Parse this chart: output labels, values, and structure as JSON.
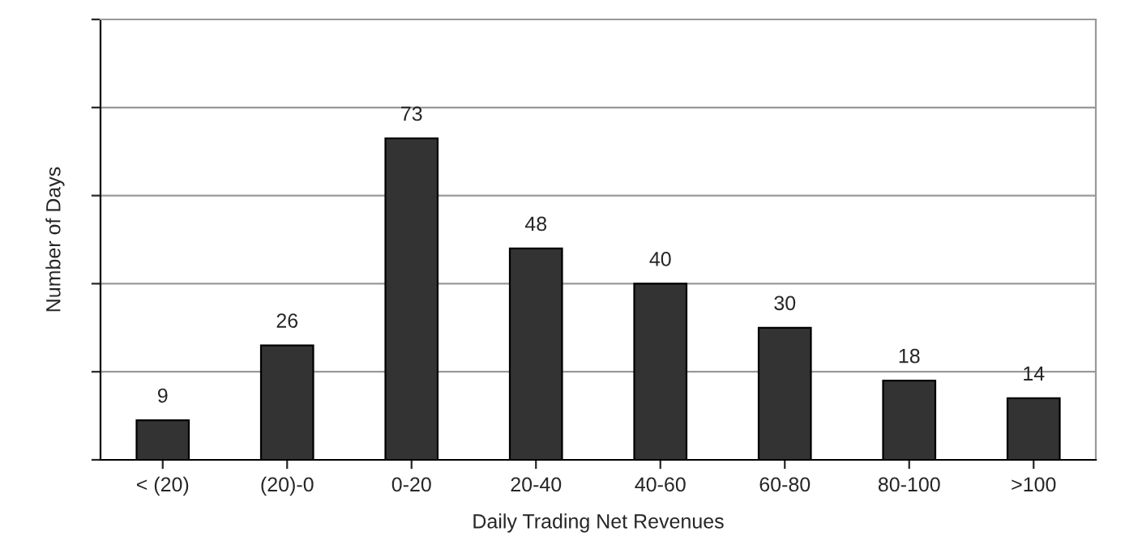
{
  "chart_data": {
    "type": "bar",
    "xlabel": "Daily Trading Net Revenues",
    "ylabel": "Number of Days",
    "categories": [
      "< (20)",
      "(20)-0",
      "0-20",
      "20-40",
      "40-60",
      "60-80",
      "80-100",
      ">100"
    ],
    "values": [
      9,
      26,
      73,
      48,
      40,
      30,
      18,
      14
    ],
    "color": "#333333",
    "ylim": [
      0,
      100
    ],
    "yticks": [
      {
        "value": 0,
        "label": null
      },
      {
        "value": 20,
        "label": null
      },
      {
        "value": 40,
        "label": null
      },
      {
        "value": 60,
        "label": null
      },
      {
        "value": 80,
        "label": null
      },
      {
        "value": 100,
        "label": null
      }
    ],
    "tick_labels": "x",
    "grid": "y",
    "data_labels": true,
    "legend": false
  }
}
